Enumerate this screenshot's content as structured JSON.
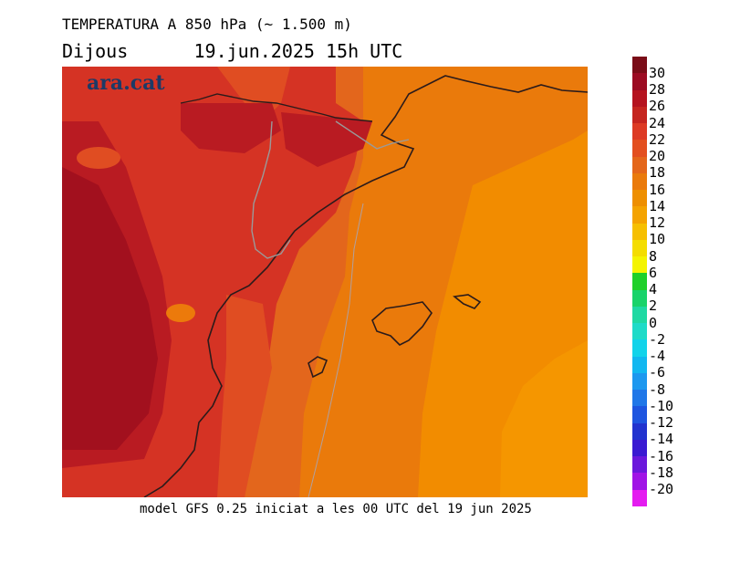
{
  "header": {
    "title": "TEMPERATURA A 850 hPa (~ 1.500 m)",
    "day": "Dijous",
    "datetime": "19.jun.2025 15h UTC"
  },
  "logo": {
    "text": "ara.cat"
  },
  "footer": {
    "text": "model GFS 0.25 iniciat a les 00 UTC del 19 jun 2025"
  },
  "legend": {
    "labels": [
      "30",
      "28",
      "26",
      "24",
      "22",
      "20",
      "18",
      "16",
      "14",
      "12",
      "10",
      "8",
      "6",
      "4",
      "2",
      "0",
      "-2",
      "-4",
      "-6",
      "-8",
      "-10",
      "-12",
      "-14",
      "-16",
      "-18",
      "-20"
    ],
    "colors": [
      "#7a0c17",
      "#9c0b22",
      "#b5131f",
      "#c5251f",
      "#dd3a24",
      "#e34f1f",
      "#e4661a",
      "#ea7a0b",
      "#ee8f00",
      "#f4a300",
      "#f6bf00",
      "#f4dd00",
      "#f4f400",
      "#1fd02a",
      "#19d36a",
      "#1fd9a3",
      "#1edbc8",
      "#12d3ea",
      "#12b7f0",
      "#1d98ef",
      "#2077e8",
      "#1e55e0",
      "#2233cf",
      "#3a1ad2",
      "#6b18dc",
      "#a014e6",
      "#e41cf0"
    ]
  },
  "map": {
    "colors": {
      "t24_26": "#a2101e",
      "t22_24": "#b91b22",
      "t22": "#d53324",
      "t20": "#e04d22",
      "t18": "#e3661c",
      "t16": "#ec7a0b",
      "t14": "#f28c00",
      "coast": "#2b1b1b",
      "border": "#9a9a9a"
    }
  }
}
